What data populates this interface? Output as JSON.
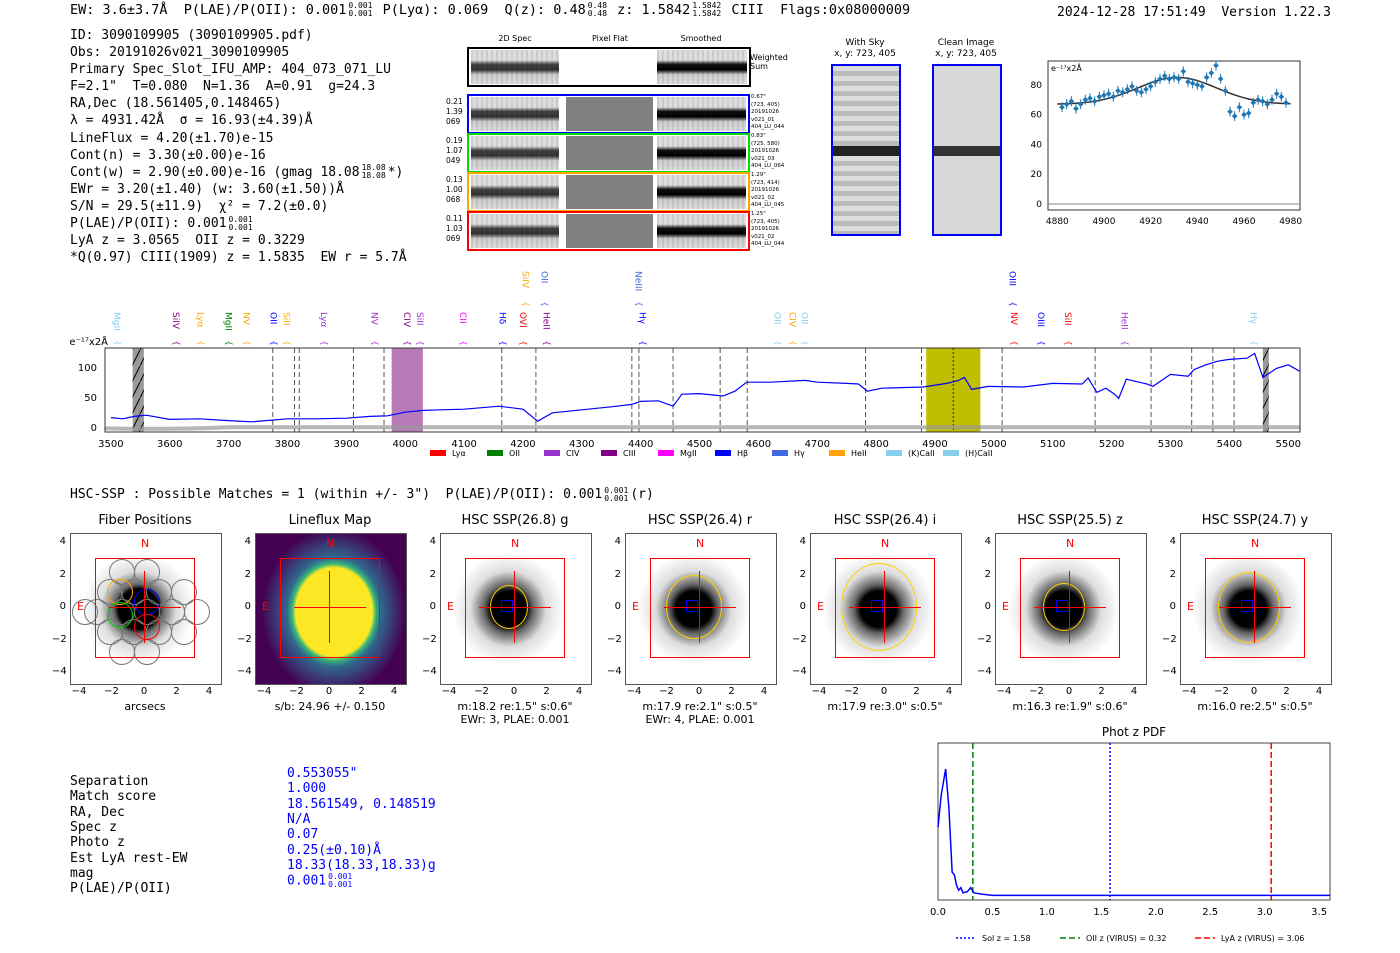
{
  "header": {
    "line": [
      {
        "t": "EW: 3.6±3.7Å  P(LAE)/P(OII): 0.001"
      },
      {
        "hi": "0.001",
        "lo": "0.001"
      },
      {
        "t": " P(Lyα): 0.069  Q(z): 0.48"
      },
      {
        "hi": "0.48",
        "lo": "0.48"
      },
      {
        "t": " z: 1.5842"
      },
      {
        "hi": "1.5842",
        "lo": "1.5842"
      },
      {
        "t": " CIII  Flags:0x08000009"
      }
    ],
    "timestamp": "2024-12-28 17:51:49  Version 1.22.3"
  },
  "info_lines": [
    [
      {
        "t": "ID: 3090109905 (3090109905.pdf)"
      }
    ],
    [
      {
        "t": "Obs: 20191026v021_3090109905"
      }
    ],
    [
      {
        "t": "Primary Spec_Slot_IFU_AMP: 404_073_071_LU"
      }
    ],
    [
      {
        "t": "F=2.1\"  T=0.080  N=1.36  A=0.91  g=24.3"
      }
    ],
    [
      {
        "t": "RA,Dec (18.561405,0.148465)"
      }
    ],
    [
      {
        "t": "λ = 4931.42Å  σ = 16.93(±4.39)Å"
      }
    ],
    [
      {
        "t": "LineFlux = 4.20(±1.70)e-15"
      }
    ],
    [
      {
        "t": "Cont(n) = 3.30(±0.00)e-16"
      }
    ],
    [
      {
        "t": "Cont(w) = 2.90(±0.00)e-16 (gmag 18.08"
      },
      {
        "hi": "18.08",
        "lo": "18.08"
      },
      {
        "t": "*)"
      }
    ],
    [
      {
        "t": "EWr = 3.20(±1.40) (w: 3.60(±1.50))Å"
      }
    ],
    [
      {
        "t": "S/N = 29.5(±11.9)  χ² = 7.2(±0.0)"
      }
    ],
    [
      {
        "t": "P(LAE)/P(OII): 0.001"
      },
      {
        "hi": "0.001",
        "lo": "0.001"
      }
    ],
    [
      {
        "t": "LyA z = 3.0565  OII z = 0.3229"
      }
    ],
    [
      {
        "t": "*Q(0.97) CIII(1909) z = 1.5835  EW r = 5.7Å"
      }
    ]
  ],
  "spec2d": {
    "col_headers": [
      "2D Spec",
      "Pixel Flat",
      "Smoothed"
    ],
    "weighted_label": "Weighted\nSum",
    "rows": [
      {
        "color": "#0000ff",
        "left": "0.21\n1.39\n069",
        "right": "0.67\"\n(723, 405)\n20191026\nv021_01\n404_LU_044"
      },
      {
        "color": "#00dd00",
        "left": "0.19\n1.07\n049",
        "right": "0.83\"\n(725, 580)\n20191026\nv021_03\n404_LU_064"
      },
      {
        "color": "#ffa500",
        "left": "0.13\n1.00\n068",
        "right": "1.29\"\n(723, 414)\n20191026\nv021_02\n404_LU_045"
      },
      {
        "color": "#ff0000",
        "left": "0.11\n1.03\n069",
        "right": "1.25\"\n(723, 405)\n20191026\nv021_02\n404_LU_044"
      }
    ]
  },
  "sky": {
    "title": "With Sky\nx, y: 723, 405"
  },
  "clean": {
    "title": "Clean Image\nx, y: 723, 405"
  },
  "hsc_header": [
    {
      "t": "HSC-SSP : Possible Matches = 1 (within +/- 3\")  P(LAE)/P(OII): 0.001"
    },
    {
      "hi": "0.001",
      "lo": "0.001"
    },
    {
      "t": "(r)"
    }
  ],
  "cutouts": [
    {
      "title": "Fiber Positions",
      "cap1": "arcsecs",
      "cap2": "",
      "type": "fiber"
    },
    {
      "title": "Lineflux Map",
      "cap1": "s/b: 24.96 +/- 0.150",
      "cap2": "",
      "type": "map"
    },
    {
      "title": "HSC SSP(26.8) g",
      "cap1": "m:18.2  re:1.5\"  s:0.6\"",
      "cap2": "EWr: 3, PLAE: 0.001",
      "type": "hsc"
    },
    {
      "title": "HSC SSP(26.4) r",
      "cap1": "m:17.9  re:2.1\"  s:0.5\"",
      "cap2": "EWr: 4, PLAE: 0.001",
      "type": "hsc"
    },
    {
      "title": "HSC SSP(26.4) i",
      "cap1": "m:17.9  re:3.0\"  s:0.5\"",
      "cap2": "",
      "type": "hsc"
    },
    {
      "title": "HSC SSP(25.5) z",
      "cap1": "m:16.3  re:1.9\"  s:0.6\"",
      "cap2": "",
      "type": "hsc"
    },
    {
      "title": "HSC SSP(24.7) y",
      "cap1": "m:16.0  re:2.5\"  s:0.5\"",
      "cap2": "",
      "type": "hsc"
    }
  ],
  "cutout_ticks": [
    "4",
    "2",
    "0",
    "−2",
    "−4"
  ],
  "cutout_xticks": [
    "−4",
    "−2",
    "0",
    "2",
    "4"
  ],
  "compass": {
    "n": "N",
    "e": "E"
  },
  "match_table": [
    {
      "label": "Separation",
      "value": "0.553055\""
    },
    {
      "label": "Match score",
      "value": "1.000"
    },
    {
      "label": "RA, Dec",
      "value": "18.561549, 0.148519"
    },
    {
      "label": "Spec z",
      "value": "N/A"
    },
    {
      "label": "Photo z",
      "value": "0.07"
    },
    {
      "label": "Est LyA rest-EW",
      "value": "0.25(±0.10)Å"
    },
    {
      "label": "mag",
      "value": "18.33(18.33,18.33)g"
    },
    {
      "label": "P(LAE)/P(OII)",
      "value": "0.001",
      "hi": "0.001",
      "lo": "0.001"
    }
  ],
  "chart_data": [
    {
      "type": "line",
      "name": "spectrum",
      "ylabel": "e⁻¹⁷x2Å",
      "xlim": [
        3490,
        5520
      ],
      "ylim": [
        -8,
        132
      ],
      "xticks": [
        3500,
        3600,
        3700,
        3800,
        3900,
        4000,
        4100,
        4200,
        4300,
        4400,
        4500,
        4600,
        4700,
        4800,
        4900,
        5000,
        5100,
        5200,
        5300,
        5400,
        5500
      ],
      "yticks": [
        0,
        50,
        100
      ],
      "x": [
        3500,
        3520,
        3540,
        3560,
        3600,
        3650,
        3700,
        3740,
        3800,
        3850,
        3900,
        3940,
        3970,
        4000,
        4030,
        4060,
        4100,
        4160,
        4200,
        4225,
        4250,
        4300,
        4350,
        4385,
        4400,
        4430,
        4455,
        4470,
        4500,
        4540,
        4560,
        4580,
        4620,
        4680,
        4700,
        4750,
        4770,
        4785,
        4810,
        4880,
        4920,
        4940,
        4950,
        4962,
        4990,
        5050,
        5100,
        5150,
        5160,
        5175,
        5190,
        5205,
        5212,
        5225,
        5260,
        5270,
        5300,
        5330,
        5340,
        5360,
        5380,
        5400,
        5430,
        5443,
        5457,
        5480,
        5500,
        5520
      ],
      "y": [
        16,
        14,
        18,
        20,
        13,
        14,
        11,
        9,
        14,
        14,
        15,
        18,
        19,
        25,
        28,
        29,
        30,
        35,
        30,
        10,
        24,
        29,
        34,
        38,
        43,
        44,
        35,
        55,
        56,
        52,
        60,
        75,
        75,
        78,
        75,
        73,
        72,
        60,
        65,
        67,
        73,
        78,
        83,
        63,
        68,
        67,
        73,
        72,
        82,
        58,
        65,
        55,
        48,
        80,
        72,
        68,
        88,
        85,
        96,
        104,
        110,
        113,
        115,
        123,
        83,
        98,
        104,
        93
      ]
    },
    {
      "type": "scatter",
      "name": "line-fit",
      "ylabel": "e⁻¹⁷x2Å",
      "xlim": [
        4876,
        4984
      ],
      "ylim": [
        -4,
        96
      ],
      "xticks": [
        4880,
        4900,
        4920,
        4940,
        4960,
        4980
      ],
      "yticks": [
        0,
        20,
        40,
        60,
        80
      ],
      "x": [
        4882,
        4884,
        4886,
        4888,
        4890,
        4892,
        4894,
        4896,
        4898,
        4900,
        4902,
        4904,
        4906,
        4908,
        4910,
        4912,
        4914,
        4916,
        4918,
        4920,
        4922,
        4924,
        4926,
        4928,
        4930,
        4932,
        4934,
        4936,
        4938,
        4940,
        4942,
        4944,
        4946,
        4948,
        4950,
        4952,
        4954,
        4956,
        4958,
        4960,
        4962,
        4964,
        4966,
        4968,
        4970,
        4972,
        4974,
        4976,
        4978
      ],
      "y": [
        65,
        67,
        69,
        64,
        67,
        70,
        71,
        69,
        72,
        73,
        74,
        72,
        76,
        75,
        77,
        79,
        76,
        75,
        77,
        79,
        82,
        84,
        86,
        84,
        85,
        84,
        89,
        82,
        81,
        80,
        79,
        85,
        88,
        93,
        84,
        76,
        62,
        59,
        65,
        60,
        61,
        68,
        70,
        69,
        67,
        70,
        74,
        72,
        68
      ],
      "model_peak": 85,
      "model_center": 4931.4,
      "model_sigma": 16.9,
      "model_base": 67
    },
    {
      "type": "line",
      "name": "phot-z-pdf",
      "title": "Phot z PDF",
      "xlim": [
        0,
        3.6
      ],
      "xticks": [
        "0.0",
        "0.5",
        "1.0",
        "1.5",
        "2.0",
        "2.5",
        "3.0",
        "3.5"
      ],
      "x": [
        0,
        0.03,
        0.07,
        0.1,
        0.13,
        0.15,
        0.17,
        0.19,
        0.21,
        0.23,
        0.27,
        0.3,
        0.33,
        0.4,
        0.5,
        1,
        2,
        3,
        3.6
      ],
      "y": [
        0.55,
        0.8,
        1.0,
        0.7,
        0.2,
        0.18,
        0.1,
        0.06,
        0.08,
        0.04,
        0.05,
        0.08,
        0.04,
        0.03,
        0.02,
        0.02,
        0.02,
        0.02,
        0.02
      ],
      "vlines": [
        {
          "x": 1.58,
          "color": "#0000ff",
          "style": "dotted",
          "label": "Sol z = 1.58"
        },
        {
          "x": 0.32,
          "color": "#008000",
          "style": "dashed",
          "label": "OII z (VIRUS) = 0.32"
        },
        {
          "x": 3.06,
          "color": "#ff0000",
          "style": "dashed",
          "label": "LyA z (VIRUS) = 3.06"
        }
      ]
    }
  ],
  "spectrum_marks": {
    "dashed_lines": [
      3775,
      3812,
      3820,
      3912,
      3964,
      4164,
      4222,
      4385,
      4397,
      4455,
      4535,
      4581,
      4782,
      4877,
      5014,
      5172,
      5267,
      5336,
      5372,
      5408
    ],
    "dotted_line": 4931,
    "bands": [
      {
        "from": 3537,
        "to": 3556,
        "color": "#999999",
        "hatch": true
      },
      {
        "from": 3977,
        "to": 4030,
        "color": "#b87bb8"
      },
      {
        "from": 4885,
        "to": 4977,
        "color": "#bfbf00"
      },
      {
        "from": 5457,
        "to": 5467,
        "color": "#999999",
        "hatch": true
      }
    ],
    "line_labels": [
      {
        "w": 3510,
        "n": "MgII",
        "c": "#87ceeb",
        "r": 1
      },
      {
        "w": 3611,
        "n": "SiIV",
        "c": "#800080",
        "r": 1
      },
      {
        "w": 3652,
        "n": "Lyα",
        "c": "#ffa500",
        "r": 1
      },
      {
        "w": 3700,
        "n": "MgII",
        "c": "#008000",
        "r": 1
      },
      {
        "w": 3730,
        "n": "NV",
        "c": "#ffa500",
        "r": 1
      },
      {
        "w": 3776,
        "n": "OII",
        "c": "#0000ff",
        "r": 1
      },
      {
        "w": 3798,
        "n": "SiII",
        "c": "#ffa500",
        "r": 1
      },
      {
        "w": 3862,
        "n": "Lyα",
        "c": "#9932cc",
        "r": 1
      },
      {
        "w": 3948,
        "n": "NV",
        "c": "#9932cc",
        "r": 1
      },
      {
        "w": 4003,
        "n": "CIV",
        "c": "#800080",
        "r": 1
      },
      {
        "w": 4025,
        "n": "SiII",
        "c": "#9932cc",
        "r": 1
      },
      {
        "w": 4098,
        "n": "CII",
        "c": "#ff00ff",
        "r": 1
      },
      {
        "w": 4165,
        "n": "Hδ",
        "c": "#0000ff",
        "r": 1
      },
      {
        "w": 4200,
        "n": "OVI",
        "c": "#ff0000",
        "r": 1
      },
      {
        "w": 4240,
        "n": "HeII",
        "c": "#800080",
        "r": 1
      },
      {
        "w": 4403,
        "n": "Hγ",
        "c": "#0000ff",
        "r": 1
      },
      {
        "w": 4632,
        "n": "OII",
        "c": "#87ceeb",
        "r": 1
      },
      {
        "w": 4658,
        "n": "CIV",
        "c": "#ffa500",
        "r": 1
      },
      {
        "w": 4674,
        "n": "OII",
        "c": "#87ceeb",
        "r": 1
      },
      {
        "w": 5034,
        "n": "NV",
        "c": "#ff0000",
        "r": 1
      },
      {
        "w": 5080,
        "n": "OIII",
        "c": "#0000ff",
        "r": 1
      },
      {
        "w": 5126,
        "n": "SiII",
        "c": "#ff0000",
        "r": 1
      },
      {
        "w": 5222,
        "n": "HeII",
        "c": "#9932cc",
        "r": 1
      },
      {
        "w": 5441,
        "n": "Hγ",
        "c": "#87ceeb",
        "r": 1
      },
      {
        "w": 4204,
        "n": "SiIV",
        "c": "#ffa500",
        "r": 2
      },
      {
        "w": 4237,
        "n": "OII",
        "c": "#4169e1",
        "r": 2
      },
      {
        "w": 4396,
        "n": "NeIII",
        "c": "#4169e1",
        "r": 2
      },
      {
        "w": 5032,
        "n": "OIII",
        "c": "#0000ff",
        "r": 2
      }
    ],
    "legend": [
      {
        "n": "Lyα",
        "c": "#ff0000"
      },
      {
        "n": "OII",
        "c": "#008000"
      },
      {
        "n": "CIV",
        "c": "#9932cc"
      },
      {
        "n": "CIII",
        "c": "#800080"
      },
      {
        "n": "MgII",
        "c": "#ff00ff"
      },
      {
        "n": "Hβ",
        "c": "#0000ff"
      },
      {
        "n": "Hγ",
        "c": "#4169e1"
      },
      {
        "n": "HeII",
        "c": "#ffa500"
      },
      {
        "n": "(K)CaII",
        "c": "#87ceeb"
      },
      {
        "n": "(H)CaII",
        "c": "#87ceeb"
      }
    ]
  }
}
